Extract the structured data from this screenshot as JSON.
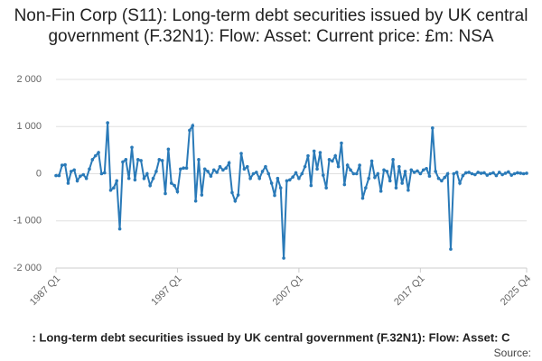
{
  "chart_data": {
    "type": "line",
    "title": "Non-Fin Corp (S11): Long-term debt securities issued by UK central government (F.32N1): Flow: Asset: Current price: £m: NSA",
    "legend_text": ": Long-term debt securities issued by UK central government (F.32N1): Flow: Asset: C",
    "source": "Source:",
    "categories": [
      "1987 Q1",
      null,
      null,
      null,
      null,
      null,
      null,
      null,
      null,
      null,
      null,
      null,
      null,
      null,
      null,
      null,
      null,
      null,
      null,
      null,
      null,
      null,
      null,
      null,
      null,
      null,
      null,
      null,
      null,
      null,
      null,
      null,
      null,
      null,
      null,
      null,
      null,
      null,
      null,
      null,
      "1997 Q1",
      null,
      null,
      null,
      null,
      null,
      null,
      null,
      null,
      null,
      null,
      null,
      null,
      null,
      null,
      null,
      null,
      null,
      null,
      null,
      null,
      null,
      null,
      null,
      null,
      null,
      null,
      null,
      null,
      null,
      null,
      null,
      null,
      null,
      null,
      null,
      null,
      null,
      null,
      null,
      "2007 Q1",
      null,
      null,
      null,
      null,
      null,
      null,
      null,
      null,
      null,
      null,
      null,
      null,
      null,
      null,
      null,
      null,
      null,
      null,
      null,
      null,
      null,
      null,
      null,
      null,
      null,
      null,
      null,
      null,
      null,
      null,
      null,
      null,
      null,
      null,
      null,
      null,
      null,
      null,
      null,
      "2017 Q1",
      null,
      null,
      null,
      null,
      null,
      null,
      null,
      null,
      null,
      null,
      null,
      null,
      null,
      null,
      null,
      null,
      null,
      null,
      null,
      null,
      null,
      null,
      null,
      null,
      null,
      null,
      null,
      null,
      null,
      null,
      null,
      null,
      null,
      null,
      "2025 Q4"
    ],
    "series": [
      {
        "color": "#2a7ab8",
        "values": [
          -40,
          -40,
          180,
          190,
          -200,
          50,
          80,
          -150,
          -50,
          -20,
          -100,
          100,
          300,
          380,
          450,
          0,
          20,
          1080,
          -350,
          -300,
          -150,
          -1170,
          250,
          300,
          -100,
          560,
          -130,
          300,
          280,
          -100,
          0,
          -250,
          -100,
          50,
          300,
          280,
          -420,
          520,
          -200,
          -250,
          -380,
          100,
          120,
          120,
          920,
          1020,
          -580,
          300,
          -450,
          100,
          50,
          -50,
          80,
          30,
          150,
          80,
          120,
          230,
          -400,
          -580,
          -450,
          430,
          100,
          150,
          -100,
          0,
          30,
          -100,
          50,
          150,
          0,
          -200,
          -460,
          -100,
          -300,
          -1790,
          -150,
          -130,
          -70,
          20,
          -100,
          0,
          150,
          380,
          -250,
          480,
          100,
          450,
          -30,
          -300,
          300,
          270,
          380,
          150,
          650,
          -230,
          180,
          80,
          0,
          0,
          180,
          -520,
          -300,
          -100,
          270,
          -80,
          0,
          -370,
          80,
          50,
          -150,
          300,
          -300,
          150,
          -200,
          50,
          -350,
          80,
          30,
          60,
          0,
          80,
          110,
          -50,
          970,
          50,
          -100,
          -150,
          -80,
          0,
          -1600,
          0,
          30,
          -200,
          -40,
          20,
          30,
          0,
          -20,
          30,
          10,
          20,
          -30,
          0,
          20,
          -40,
          30,
          -20,
          10,
          40,
          -30,
          0,
          20,
          10,
          0,
          10
        ]
      }
    ],
    "ylim": [
      -2000,
      2000
    ],
    "yticks": [
      {
        "value": 2000,
        "label": "2 000"
      },
      {
        "value": 1000,
        "label": "1 000"
      },
      0,
      {
        "value": -1000,
        "label": "-1 000"
      },
      {
        "value": -2000,
        "label": "-2 000"
      }
    ],
    "grid": true
  }
}
